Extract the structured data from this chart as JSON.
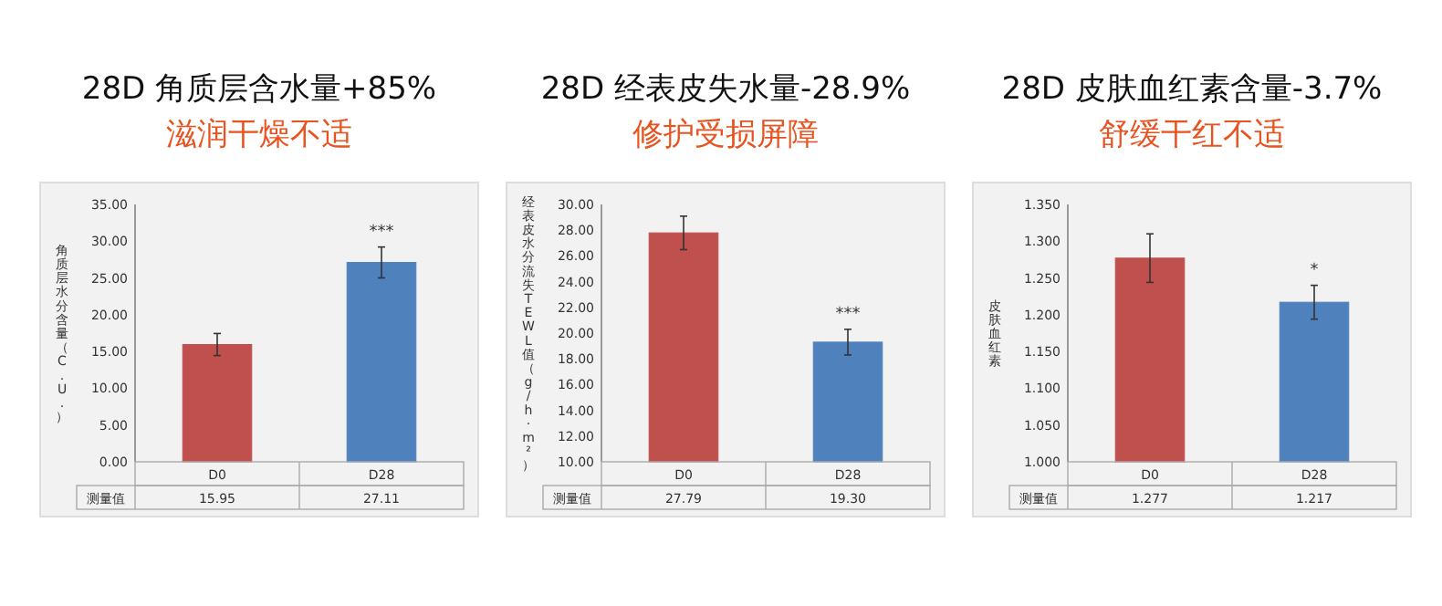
{
  "chart_data": [
    {
      "type": "bar",
      "title": "28D 角质层含水量+85%",
      "subtitle": "滋润干燥不适",
      "ylabel": "角质层水分含量（C.U.）",
      "categories": [
        "D0",
        "D28"
      ],
      "values": [
        15.95,
        27.11
      ],
      "colors": [
        "#c0504d",
        "#4f81bd"
      ],
      "errors": [
        1.5,
        2.1
      ],
      "value_labels": [
        "15.95",
        "27.11"
      ],
      "ylim": [
        0,
        35
      ],
      "yticks": [
        {
          "value": 0,
          "label": "0.00"
        },
        {
          "value": 5,
          "label": "5.00"
        },
        {
          "value": 10,
          "label": "10.00"
        },
        {
          "value": 15,
          "label": "15.00"
        },
        {
          "value": 20,
          "label": "20.00"
        },
        {
          "value": 25,
          "label": "25.00"
        },
        {
          "value": 30,
          "label": "30.00"
        },
        {
          "value": 35,
          "label": "35.00"
        }
      ],
      "annotations": [
        "测量值",
        "***"
      ]
    },
    {
      "type": "bar",
      "title": "28D 经表皮失水量-28.9%",
      "subtitle": "修护受损屏障",
      "ylabel": "经表皮水分流失TEWL值（g/h·m²）",
      "categories": [
        "D0",
        "D28"
      ],
      "values": [
        27.79,
        19.3
      ],
      "colors": [
        "#c0504d",
        "#4f81bd"
      ],
      "errors": [
        1.3,
        1.0
      ],
      "value_labels": [
        "27.79",
        "19.30"
      ],
      "ylim": [
        10,
        30
      ],
      "yticks": [
        {
          "value": 10,
          "label": "10.00"
        },
        {
          "value": 12,
          "label": "12.00"
        },
        {
          "value": 14,
          "label": "14.00"
        },
        {
          "value": 16,
          "label": "16.00"
        },
        {
          "value": 18,
          "label": "18.00"
        },
        {
          "value": 20,
          "label": "20.00"
        },
        {
          "value": 22,
          "label": "22.00"
        },
        {
          "value": 24,
          "label": "24.00"
        },
        {
          "value": 26,
          "label": "26.00"
        },
        {
          "value": 28,
          "label": "28.00"
        },
        {
          "value": 30,
          "label": "30.00"
        }
      ],
      "annotations": [
        "测量值",
        "***"
      ]
    },
    {
      "type": "bar",
      "title": "28D 皮肤血红素含量-3.7%",
      "subtitle": "舒缓干红不适",
      "ylabel": "皮肤血红素",
      "categories": [
        "D0",
        "D28"
      ],
      "values": [
        1.277,
        1.217
      ],
      "colors": [
        "#c0504d",
        "#4f81bd"
      ],
      "errors": [
        0.033,
        0.023
      ],
      "value_labels": [
        "1.277",
        "1.217"
      ],
      "ylim": [
        1.0,
        1.35
      ],
      "yticks": [
        {
          "value": 1.0,
          "label": "1.000"
        },
        {
          "value": 1.05,
          "label": "1.050"
        },
        {
          "value": 1.1,
          "label": "1.100"
        },
        {
          "value": 1.15,
          "label": "1.150"
        },
        {
          "value": 1.2,
          "label": "1.200"
        },
        {
          "value": 1.25,
          "label": "1.250"
        },
        {
          "value": 1.3,
          "label": "1.300"
        },
        {
          "value": 1.35,
          "label": "1.350"
        }
      ],
      "annotations": [
        "测量值",
        "*"
      ]
    }
  ]
}
